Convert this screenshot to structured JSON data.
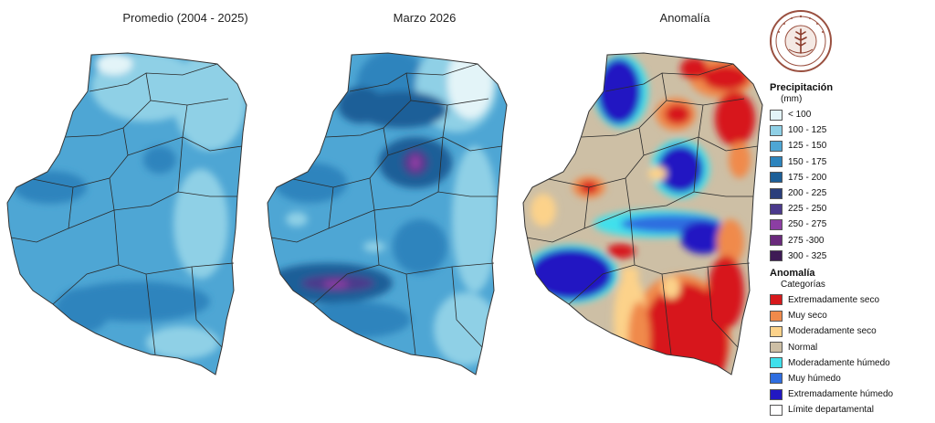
{
  "panels": [
    {
      "title": "Promedio (2004 - 2025)"
    },
    {
      "title": "Marzo 2026"
    },
    {
      "title": "Anomalía"
    }
  ],
  "legend": {
    "precip_title": "Precipitación",
    "precip_unit": "(mm)",
    "precip_classes": [
      {
        "label": "< 100",
        "color": "#e3f4f8"
      },
      {
        "label": "100 - 125",
        "color": "#8fd0e6"
      },
      {
        "label": "125 - 150",
        "color": "#4ea6d4"
      },
      {
        "label": "150 - 175",
        "color": "#2d84bd"
      },
      {
        "label": "175 - 200",
        "color": "#1c5f98"
      },
      {
        "label": "200 - 225",
        "color": "#2a3f7c"
      },
      {
        "label": "225 - 250",
        "color": "#4b3a8c"
      },
      {
        "label": "250 - 275",
        "color": "#8c3ea3"
      },
      {
        "label": "275 -300",
        "color": "#6a2a7c"
      },
      {
        "label": "300 - 325",
        "color": "#3e1b55"
      }
    ],
    "anom_title": "Anomalía",
    "anom_sub": "Categorías",
    "anom_classes": [
      {
        "label": "Extremadamente seco",
        "color": "#d7191c"
      },
      {
        "label": "Muy seco",
        "color": "#f08a4b"
      },
      {
        "label": "Moderadamente seco",
        "color": "#fcd28a"
      },
      {
        "label": "Normal",
        "color": "#cdbfa5"
      },
      {
        "label": "Moderadamente húmedo",
        "color": "#3fe0ec"
      },
      {
        "label": "Muy húmedo",
        "color": "#2f6ee0"
      },
      {
        "label": "Extremadamente húmedo",
        "color": "#2218c2"
      }
    ],
    "limit_label": "Límite departamental",
    "limit_color": "#ffffff"
  },
  "logo": {
    "name": "seal-logo",
    "text": "BOLSA DE CEREALES DE ENTRE RÍOS",
    "year": "1979"
  }
}
